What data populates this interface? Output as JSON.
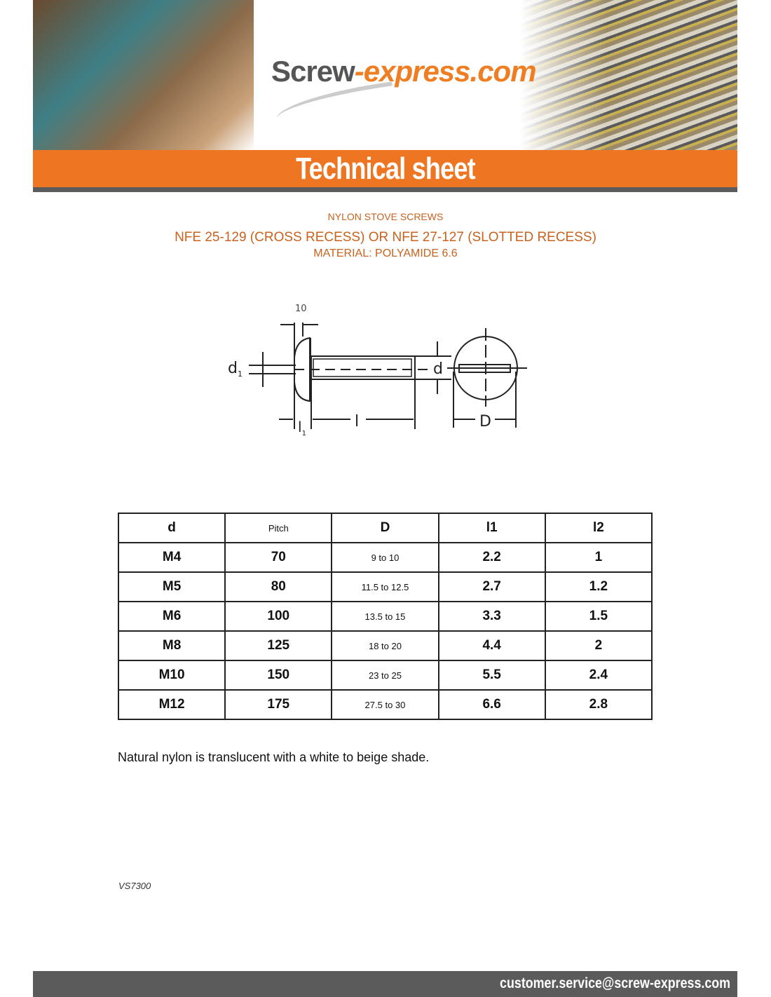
{
  "header": {
    "logo_main": "Screw",
    "logo_accent": "-express.com",
    "banner_title": "Technical sheet"
  },
  "titles": {
    "product": "NYLON STOVE SCREWS",
    "standard": "NFE 25-129 (CROSS RECESS) OR NFE 27-127 (SLOTTED RECESS)",
    "material": "MATERIAL: POLYAMIDE 6.6"
  },
  "diagram": {
    "labels": {
      "top": "10",
      "d1": "d",
      "d1_sub": "1",
      "l1": "l",
      "l1_sub": "1",
      "l": "l",
      "d": "d",
      "D": "D"
    }
  },
  "table": {
    "headers": [
      "d",
      "Pitch",
      "D",
      "l1",
      "l2"
    ],
    "rows": [
      [
        "M4",
        "70",
        "9 to 10",
        "2.2",
        "1"
      ],
      [
        "M5",
        "80",
        "11.5 to 12.5",
        "2.7",
        "1.2"
      ],
      [
        "M6",
        "100",
        "13.5 to 15",
        "3.3",
        "1.5"
      ],
      [
        "M8",
        "125",
        "18 to 20",
        "4.4",
        "2"
      ],
      [
        "M10",
        "150",
        "23 to 25",
        "5.5",
        "2.4"
      ],
      [
        "M12",
        "175",
        "27.5 to 30",
        "6.6",
        "2.8"
      ]
    ]
  },
  "note": "Natural nylon is translucent with a white to beige shade.",
  "reference": "VS7300",
  "footer": {
    "email": "customer.service@screw-express.com"
  },
  "colors": {
    "accent": "#ee7623",
    "title_text": "#c8621e",
    "footer_bar": "#5b5b5b"
  }
}
